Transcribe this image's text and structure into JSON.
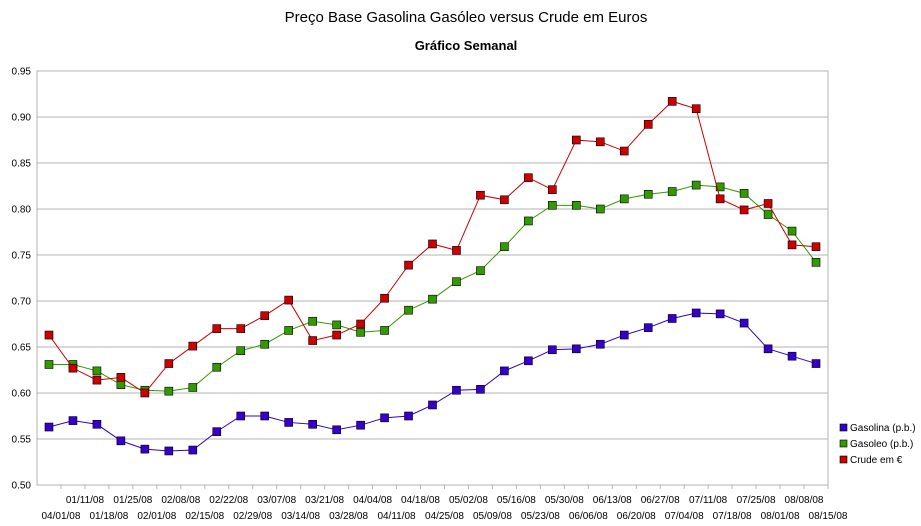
{
  "chart_data": {
    "type": "line",
    "title": "Preço Base Gasolina Gasóleo versus Crude em Euros",
    "subtitle": "Gráfico Semanal",
    "xlabel": "",
    "ylabel": "",
    "ylim": [
      0.5,
      0.95
    ],
    "yticks": [
      "0.95",
      "0.90",
      "0.85",
      "0.80",
      "0.75",
      "0.70",
      "0.65",
      "0.60",
      "0.55",
      "0.50"
    ],
    "grid": true,
    "legend_position": "right",
    "categories": [
      "04/01/08",
      "01/11/08",
      "01/18/08",
      "01/25/08",
      "02/01/08",
      "02/08/08",
      "02/15/08",
      "02/22/08",
      "02/29/08",
      "03/07/08",
      "03/14/08",
      "03/21/08",
      "03/28/08",
      "04/04/08",
      "04/11/08",
      "04/18/08",
      "04/25/08",
      "05/02/08",
      "05/09/08",
      "05/16/08",
      "05/23/08",
      "05/30/08",
      "06/06/08",
      "06/13/08",
      "06/20/08",
      "06/27/08",
      "07/04/08",
      "07/11/08",
      "07/18/08",
      "07/25/08",
      "08/01/08",
      "08/08/08",
      "08/15/08"
    ],
    "series": [
      {
        "name": "Gasolina (p.b.)",
        "color": "#3300cc",
        "values": [
          0.563,
          0.57,
          0.566,
          0.548,
          0.539,
          0.537,
          0.538,
          0.558,
          0.575,
          0.575,
          0.568,
          0.566,
          0.56,
          0.565,
          0.573,
          0.575,
          0.587,
          0.603,
          0.604,
          0.624,
          0.635,
          0.647,
          0.648,
          0.653,
          0.663,
          0.671,
          0.681,
          0.687,
          0.686,
          0.676,
          0.648,
          0.64,
          0.632
        ]
      },
      {
        "name": "Gasoleo (p.b.)",
        "color": "#339900",
        "values": [
          0.631,
          0.631,
          0.624,
          0.609,
          0.603,
          0.602,
          0.606,
          0.628,
          0.646,
          0.653,
          0.668,
          0.678,
          0.674,
          0.666,
          0.668,
          0.69,
          0.702,
          0.721,
          0.733,
          0.759,
          0.787,
          0.804,
          0.804,
          0.8,
          0.811,
          0.816,
          0.819,
          0.826,
          0.824,
          0.817,
          0.794,
          0.776,
          0.742
        ]
      },
      {
        "name": "Crude em €",
        "color": "#cc0000",
        "values": [
          0.663,
          0.627,
          0.614,
          0.617,
          0.6,
          0.632,
          0.651,
          0.67,
          0.67,
          0.684,
          0.701,
          0.657,
          0.663,
          0.675,
          0.703,
          0.739,
          0.762,
          0.755,
          0.815,
          0.81,
          0.834,
          0.821,
          0.875,
          0.873,
          0.863,
          0.892,
          0.917,
          0.909,
          0.811,
          0.799,
          0.806,
          0.761,
          0.759
        ]
      }
    ]
  }
}
